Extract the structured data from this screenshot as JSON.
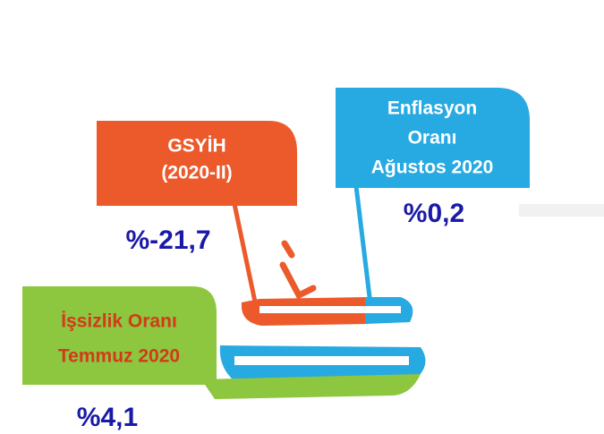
{
  "items": [
    {
      "lines": [
        "GSYİH",
        "(2020-II)"
      ],
      "value": "%-21,7"
    },
    {
      "lines": [
        "Enflasyon",
        "Oranı",
        "Ağustos 2020"
      ],
      "value": "%0,2"
    },
    {
      "lines": [
        "İşsizlik Oranı",
        "Temmuz 2020"
      ],
      "value": "%4,1"
    }
  ]
}
